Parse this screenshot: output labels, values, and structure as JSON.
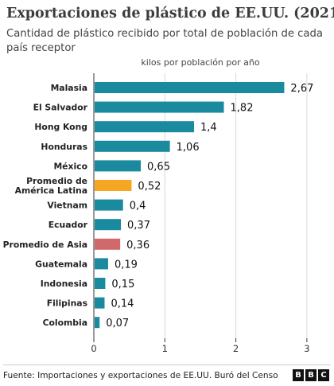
{
  "title": "Exportaciones de plástico de EE.UU. (2021)",
  "subtitle": "Cantidad de plástico recibido por total de población de cada país receptor",
  "source": "Fuente: Importaciones y exportaciones de EE.UU. Buró del Censo",
  "logo_letters": [
    "B",
    "B",
    "C"
  ],
  "colors": {
    "default": "#1a8a9f",
    "latin_america": "#f5a623",
    "asia": "#d06a6a",
    "grid": "#d8d8d8",
    "axis": "#333333"
  },
  "chart_data": {
    "type": "bar",
    "orientation": "horizontal",
    "unit_label": "kilos por población por año",
    "xlim": [
      0,
      3
    ],
    "xticks": [
      0,
      1,
      2,
      3
    ],
    "xtick_labels": [
      "0",
      "1",
      "2",
      "3"
    ],
    "grid": true,
    "categories": [
      {
        "label_lines": [
          "Malasia"
        ],
        "value": 2.67,
        "value_label": "2,67",
        "color": "default"
      },
      {
        "label_lines": [
          "El Salvador"
        ],
        "value": 1.82,
        "value_label": "1,82",
        "color": "default"
      },
      {
        "label_lines": [
          "Hong Kong"
        ],
        "value": 1.4,
        "value_label": "1,4",
        "color": "default"
      },
      {
        "label_lines": [
          "Honduras"
        ],
        "value": 1.06,
        "value_label": "1,06",
        "color": "default"
      },
      {
        "label_lines": [
          "México"
        ],
        "value": 0.65,
        "value_label": "0,65",
        "color": "default"
      },
      {
        "label_lines": [
          "Promedio de",
          "América Latina"
        ],
        "value": 0.52,
        "value_label": "0,52",
        "color": "latin_america"
      },
      {
        "label_lines": [
          "Vietnam"
        ],
        "value": 0.4,
        "value_label": "0,4",
        "color": "default"
      },
      {
        "label_lines": [
          "Ecuador"
        ],
        "value": 0.37,
        "value_label": "0,37",
        "color": "default"
      },
      {
        "label_lines": [
          "Promedio de Asia"
        ],
        "value": 0.36,
        "value_label": "0,36",
        "color": "asia"
      },
      {
        "label_lines": [
          "Guatemala"
        ],
        "value": 0.19,
        "value_label": "0,19",
        "color": "default"
      },
      {
        "label_lines": [
          "Indonesia"
        ],
        "value": 0.15,
        "value_label": "0,15",
        "color": "default"
      },
      {
        "label_lines": [
          "Filipinas"
        ],
        "value": 0.14,
        "value_label": "0,14",
        "color": "default"
      },
      {
        "label_lines": [
          "Colombia"
        ],
        "value": 0.07,
        "value_label": "0,07",
        "color": "default"
      }
    ]
  }
}
